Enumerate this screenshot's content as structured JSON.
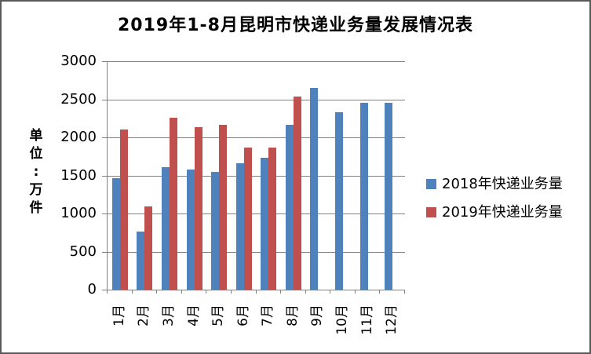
{
  "chart_data": {
    "type": "bar",
    "title": "2019年1-8月昆明市快递业务量发展情况表",
    "xlabel": "",
    "ylabel": "单位:万件",
    "categories": [
      "1月",
      "2月",
      "3月",
      "4月",
      "5月",
      "6月",
      "7月",
      "8月",
      "9月",
      "10月",
      "11月",
      "12月"
    ],
    "series": [
      {
        "name": "2018年快递业务量",
        "color": "#4F81BD",
        "values": [
          1460,
          760,
          1610,
          1580,
          1550,
          1660,
          1730,
          2170,
          2650,
          2330,
          2450,
          2450
        ]
      },
      {
        "name": "2019年快递业务量",
        "color": "#C0504D",
        "values": [
          2100,
          1090,
          2260,
          2130,
          2160,
          1870,
          1870,
          2540,
          null,
          null,
          null,
          null
        ]
      }
    ],
    "ylim": [
      0,
      3000
    ],
    "yticks": [
      0,
      500,
      1000,
      1500,
      2000,
      2500,
      3000
    ],
    "grid": true,
    "legend_position": "right",
    "gridline_color": "#808080",
    "axis_color": "#808080",
    "frame_border_color": "#595959"
  }
}
